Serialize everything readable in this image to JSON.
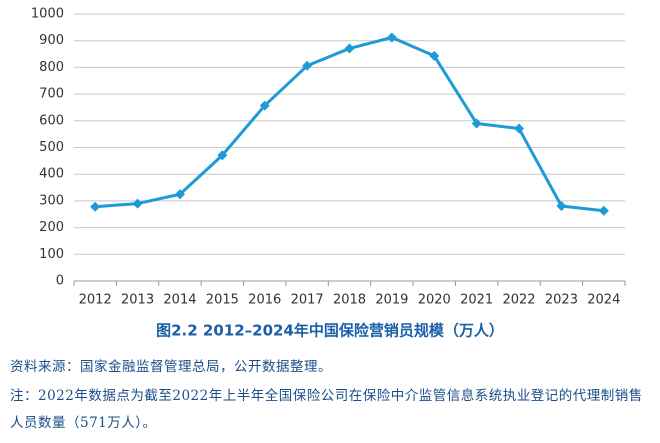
{
  "chart_data": {
    "type": "line",
    "title": "图2.2  2012–2024年中国保险营销员规模（万人）",
    "source": "资料来源：国家金融监督管理总局，公开数据整理。",
    "note": "注：2022年数据点为截至2022年上半年全国保险公司在保险中介监管信息系统执业登记的代理制销售人员数量（571万人）。",
    "categories": [
      "2012",
      "2013",
      "2014",
      "2015",
      "2016",
      "2017",
      "2018",
      "2019",
      "2020",
      "2021",
      "2022",
      "2023",
      "2024"
    ],
    "series": [
      {
        "name": "保险营销员规模",
        "color": "#1e9ad6",
        "values": [
          278,
          290,
          325,
          471,
          657,
          806,
          871,
          912,
          843,
          590,
          571,
          281,
          263
        ]
      }
    ],
    "ylim": [
      0,
      1000
    ],
    "yticks": [
      0,
      100,
      200,
      300,
      400,
      500,
      600,
      700,
      800,
      900,
      1000
    ],
    "grid": true,
    "marker": "diamond"
  }
}
